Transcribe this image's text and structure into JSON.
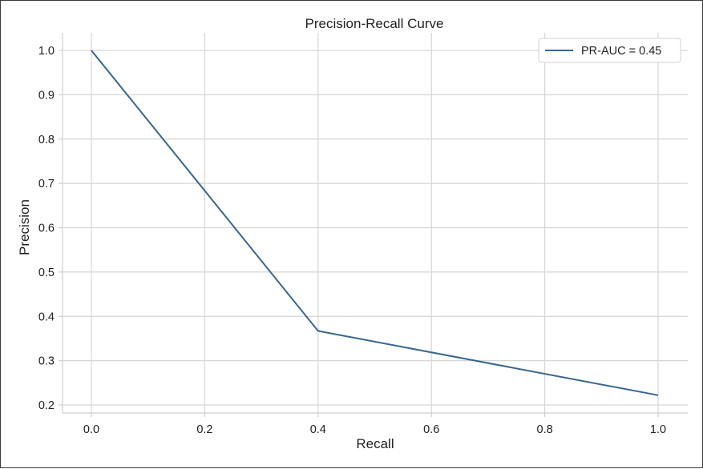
{
  "chart_data": {
    "type": "line",
    "title": "Precision-Recall Curve",
    "xlabel": "Recall",
    "ylabel": "Precision",
    "xlim": [
      0.0,
      1.0
    ],
    "ylim": [
      0.2,
      1.0
    ],
    "xticks": [
      "0.0",
      "0.2",
      "0.4",
      "0.6",
      "0.8",
      "1.0"
    ],
    "yticks": [
      "0.2",
      "0.3",
      "0.4",
      "0.5",
      "0.6",
      "0.7",
      "0.8",
      "0.9",
      "1.0"
    ],
    "grid": true,
    "legend_position": "top-right",
    "series": [
      {
        "name": "PR-AUC = 0.45",
        "color": "#3a6690",
        "x": [
          0.0,
          0.4,
          1.0
        ],
        "y": [
          1.0,
          0.367,
          0.222
        ]
      }
    ]
  }
}
